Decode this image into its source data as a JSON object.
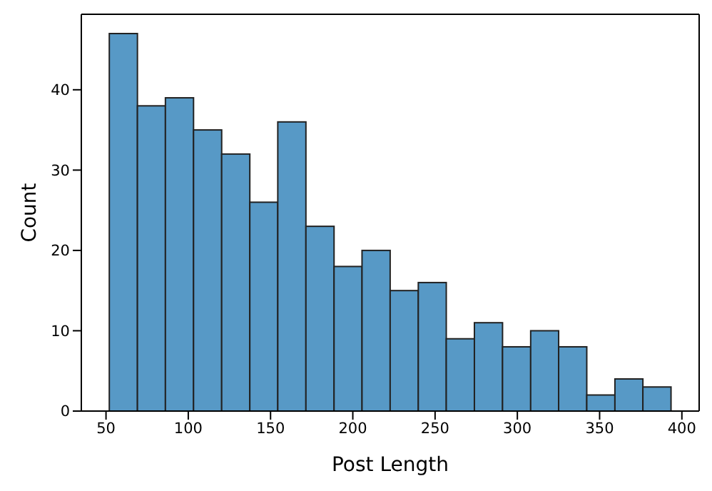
{
  "chart_data": {
    "type": "histogram",
    "xlabel": "Post Length",
    "ylabel": "Count",
    "bins": [
      52.0,
      69.1,
      86.1,
      103.2,
      120.3,
      137.4,
      154.4,
      171.5,
      188.6,
      205.6,
      222.7,
      239.8,
      256.8,
      273.9,
      291.0,
      308.1,
      325.1,
      342.2,
      359.3,
      376.3,
      393.4
    ],
    "values": [
      47,
      38,
      39,
      35,
      32,
      26,
      36,
      23,
      18,
      20,
      15,
      16,
      9,
      11,
      8,
      10,
      8,
      2,
      4,
      3
    ],
    "color": "#5799c6",
    "xlim": [
      35,
      410.5
    ],
    "xticks": [
      50,
      100,
      150,
      200,
      250,
      300,
      350,
      400
    ],
    "ylim": [
      0,
      49.4
    ],
    "yticks": [
      0,
      10,
      20,
      30,
      40
    ],
    "grid": false
  }
}
